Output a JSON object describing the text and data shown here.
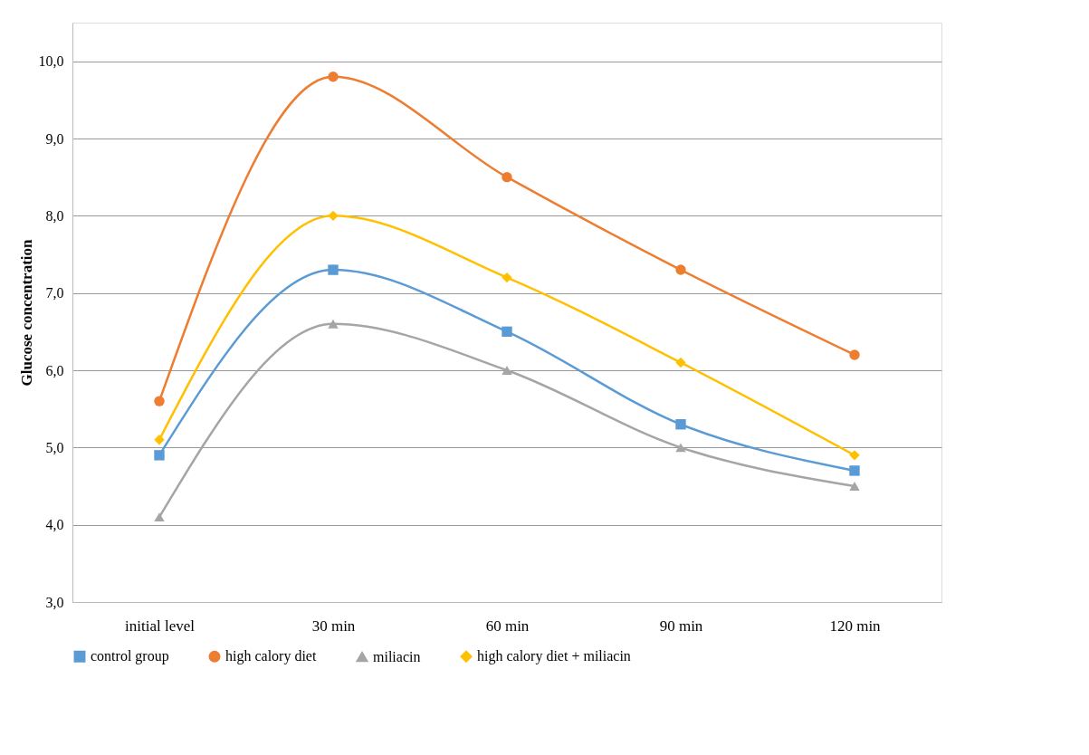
{
  "chart_data": {
    "type": "line",
    "ylabel": "Glucose concentration",
    "categories": [
      "initial  level",
      "30 min",
      "60 min",
      "90 min",
      "120 min"
    ],
    "series": [
      {
        "name": "control group",
        "color": "#5b9bd5",
        "marker": "square",
        "values": [
          4.9,
          7.3,
          6.5,
          5.3,
          4.7
        ]
      },
      {
        "name": "high calory diet",
        "color": "#ed7d31",
        "marker": "circle",
        "values": [
          5.6,
          9.8,
          8.5,
          7.3,
          6.2
        ]
      },
      {
        "name": "miliacin",
        "color": "#a5a5a5",
        "marker": "triangle",
        "values": [
          4.1,
          6.6,
          6.0,
          5.0,
          4.5
        ]
      },
      {
        "name": "high calory diet + miliacin",
        "color": "#ffc000",
        "marker": "diamond",
        "values": [
          5.1,
          8.0,
          7.2,
          6.1,
          4.9
        ]
      }
    ],
    "ylim": [
      3,
      10.5
    ],
    "yticks": [
      {
        "value": 3,
        "label": "3,0"
      },
      {
        "value": 4,
        "label": "4,0"
      },
      {
        "value": 5,
        "label": "5,0"
      },
      {
        "value": 6,
        "label": "6,0"
      },
      {
        "value": 7,
        "label": "7,0"
      },
      {
        "value": 8,
        "label": "8,0"
      },
      {
        "value": 9,
        "label": "9,0"
      },
      {
        "value": 10,
        "label": "10,0"
      }
    ],
    "grid": "y",
    "legend": "bottom",
    "line_style": "solid"
  }
}
